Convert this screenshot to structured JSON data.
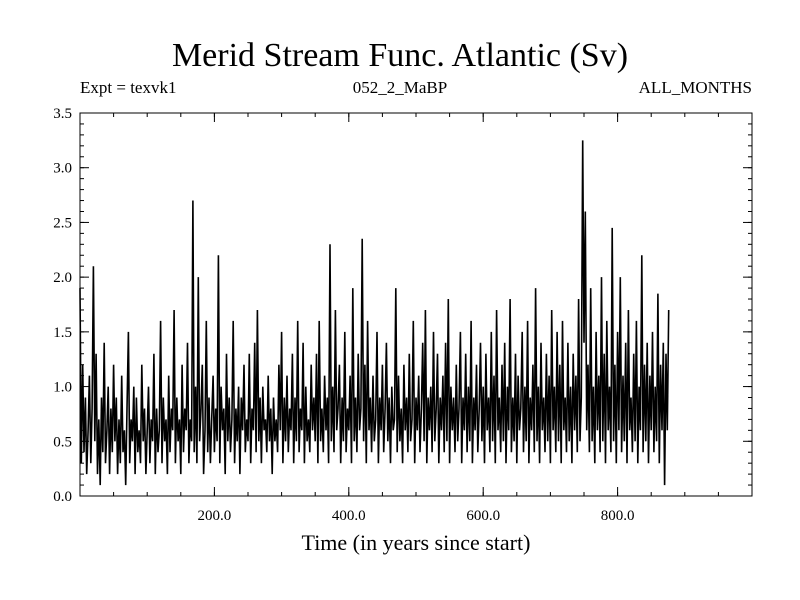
{
  "chart_data": {
    "type": "line",
    "title": "Merid Stream Func. Atlantic (Sv)",
    "subtitle_left": "Expt = texvk1",
    "subtitle_center": "052_2_MaBP",
    "subtitle_right": "ALL_MONTHS",
    "xlabel": "Time (in years since start)",
    "ylabel": "",
    "xlim": [
      0,
      1000
    ],
    "ylim": [
      0,
      3.5
    ],
    "x_ticks": [
      200,
      400,
      600,
      800
    ],
    "x_tick_labels": [
      "200.0",
      "400.0",
      "600.0",
      "800.0"
    ],
    "y_ticks": [
      0,
      0.5,
      1,
      1.5,
      2,
      2.5,
      3,
      3.5
    ],
    "y_tick_labels": [
      "0.0",
      "0.5",
      "1.0",
      "1.5",
      "2.0",
      "2.5",
      "3.0",
      "3.5"
    ],
    "grid": false,
    "series": [
      {
        "name": "Merid Stream Func. Atlantic",
        "x_start": 0,
        "x_step": 2,
        "values": [
          1.9,
          0.3,
          1.2,
          0.4,
          0.9,
          0.2,
          0.6,
          1.1,
          0.3,
          0.8,
          2.1,
          0.5,
          1.3,
          0.2,
          0.7,
          0.1,
          0.9,
          0.4,
          1.4,
          0.3,
          0.6,
          1.0,
          0.2,
          0.8,
          0.4,
          1.2,
          0.5,
          0.9,
          0.2,
          0.7,
          0.3,
          1.1,
          0.4,
          0.6,
          0.1,
          0.8,
          1.5,
          0.3,
          0.7,
          0.5,
          1.0,
          0.2,
          0.9,
          0.4,
          0.6,
          0.3,
          1.2,
          0.5,
          0.8,
          0.2,
          0.6,
          1.0,
          0.3,
          0.7,
          0.5,
          1.3,
          0.2,
          0.8,
          0.4,
          0.6,
          1.6,
          0.3,
          0.9,
          0.5,
          0.7,
          0.2,
          1.1,
          0.4,
          0.8,
          0.6,
          1.7,
          0.3,
          0.9,
          0.5,
          0.7,
          0.2,
          1.2,
          0.4,
          0.8,
          0.6,
          1.4,
          0.3,
          0.7,
          0.5,
          2.7,
          0.4,
          1.0,
          0.3,
          2.0,
          0.5,
          0.8,
          1.2,
          0.2,
          0.6,
          1.6,
          0.4,
          0.9,
          0.3,
          0.7,
          1.1,
          0.4,
          0.8,
          0.5,
          2.2,
          0.3,
          1.0,
          0.6,
          0.8,
          0.2,
          1.3,
          0.5,
          0.9,
          0.4,
          0.7,
          1.6,
          0.3,
          0.8,
          0.5,
          1.0,
          0.2,
          0.9,
          0.6,
          1.2,
          0.4,
          0.7,
          0.5,
          1.3,
          0.3,
          0.8,
          0.6,
          1.4,
          0.4,
          1.7,
          0.5,
          0.9,
          0.3,
          1.0,
          0.6,
          0.7,
          0.4,
          1.1,
          0.5,
          0.8,
          0.2,
          0.9,
          0.5,
          0.7,
          0.4,
          1.2,
          0.6,
          1.5,
          0.3,
          0.9,
          0.5,
          1.1,
          0.4,
          0.8,
          0.6,
          1.3,
          0.3,
          0.9,
          0.5,
          1.6,
          0.4,
          0.8,
          0.6,
          1.4,
          0.3,
          1.0,
          0.5,
          0.7,
          0.4,
          1.2,
          0.6,
          0.9,
          0.5,
          1.3,
          0.3,
          1.6,
          0.5,
          0.8,
          0.4,
          1.1,
          0.6,
          0.9,
          0.3,
          2.3,
          0.5,
          1.0,
          0.4,
          1.7,
          0.6,
          0.8,
          1.2,
          0.3,
          0.9,
          0.5,
          1.5,
          0.4,
          0.8,
          0.6,
          1.1,
          0.3,
          1.9,
          0.5,
          0.9,
          0.4,
          1.3,
          0.6,
          0.8,
          2.35,
          0.5,
          1.2,
          0.3,
          1.6,
          0.6,
          0.9,
          0.4,
          1.1,
          0.5,
          0.7,
          1.5,
          0.3,
          0.9,
          0.6,
          1.2,
          0.4,
          0.8,
          1.4,
          0.5,
          0.9,
          0.3,
          1.0,
          0.6,
          0.7,
          1.9,
          0.4,
          1.1,
          0.5,
          0.8,
          0.3,
          1.2,
          0.6,
          0.9,
          0.4,
          1.3,
          0.5,
          0.7,
          1.6,
          0.3,
          0.9,
          0.6,
          1.1,
          0.4,
          0.8,
          1.4,
          0.5,
          1.7,
          0.3,
          0.9,
          0.6,
          1.0,
          0.4,
          1.5,
          0.5,
          0.8,
          1.3,
          0.3,
          0.9,
          0.6,
          1.1,
          0.4,
          1.4,
          0.5,
          1.8,
          0.3,
          1.0,
          0.6,
          0.9,
          0.4,
          1.2,
          0.5,
          0.8,
          1.5,
          0.3,
          0.9,
          0.6,
          1.3,
          0.4,
          1.0,
          0.5,
          1.6,
          0.3,
          0.9,
          0.6,
          1.2,
          0.4,
          0.8,
          1.4,
          0.5,
          1.0,
          0.3,
          1.3,
          0.6,
          0.9,
          0.4,
          1.5,
          0.5,
          1.1,
          0.3,
          1.7,
          0.6,
          0.9,
          0.4,
          1.2,
          0.5,
          1.4,
          0.3,
          1.0,
          0.6,
          1.8,
          0.4,
          0.9,
          0.5,
          1.3,
          0.3,
          1.1,
          0.6,
          0.8,
          1.5,
          0.4,
          1.0,
          0.5,
          1.6,
          0.3,
          0.9,
          0.6,
          1.2,
          0.4,
          1.9,
          0.5,
          1.0,
          0.3,
          1.4,
          0.6,
          0.9,
          0.4,
          1.3,
          0.5,
          1.1,
          0.3,
          1.7,
          0.6,
          1.0,
          0.4,
          1.5,
          0.5,
          1.2,
          0.3,
          1.6,
          0.6,
          0.9,
          0.4,
          1.4,
          0.5,
          1.0,
          0.3,
          1.3,
          0.6,
          1.1,
          0.4,
          1.8,
          0.5,
          0.9,
          3.25,
          1.4,
          2.6,
          0.6,
          1.2,
          0.4,
          1.9,
          0.5,
          1.0,
          0.3,
          1.5,
          0.6,
          1.1,
          0.4,
          2.0,
          0.5,
          1.3,
          0.3,
          1.6,
          0.6,
          1.0,
          0.4,
          2.45,
          0.5,
          1.2,
          0.3,
          1.5,
          0.6,
          2.0,
          0.4,
          1.1,
          0.5,
          1.4,
          0.3,
          1.7,
          0.6,
          0.9,
          0.4,
          1.3,
          0.5,
          1.6,
          0.3,
          1.0,
          0.6,
          2.2,
          0.4,
          1.2,
          0.5,
          1.4,
          0.3,
          1.1,
          0.6,
          1.5,
          0.4,
          1.0,
          0.5,
          1.85,
          0.3,
          1.2,
          0.6,
          1.4,
          0.1,
          1.3,
          0.6,
          1.7
        ]
      }
    ]
  }
}
